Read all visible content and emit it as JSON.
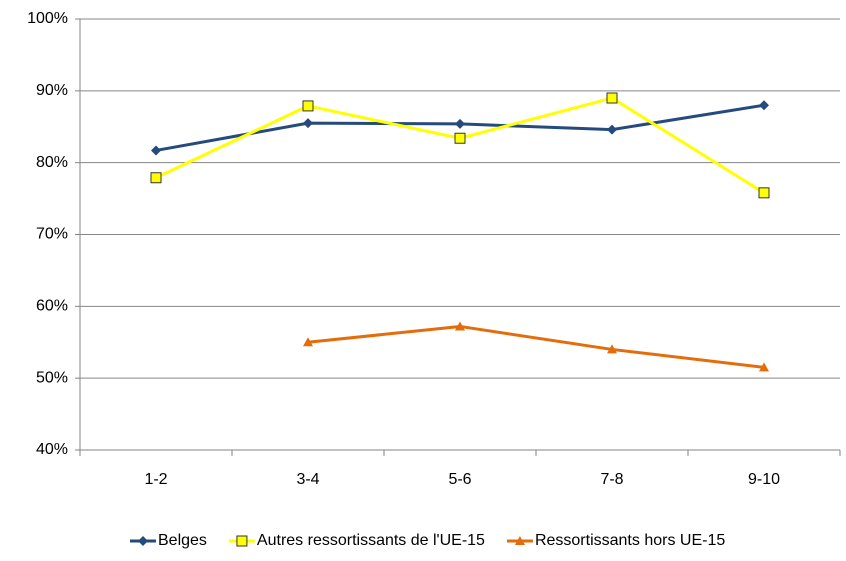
{
  "chart_data": {
    "type": "line",
    "categories": [
      "1-2",
      "3-4",
      "5-6",
      "7-8",
      "9-10"
    ],
    "series": [
      {
        "name": "Belges",
        "color": "#254a7e",
        "marker": "diamond",
        "values": [
          81.7,
          85.5,
          85.4,
          84.6,
          88.0
        ]
      },
      {
        "name": "Autres ressortissants de l'UE-15",
        "color": "#ffff00",
        "marker": "square",
        "values": [
          77.9,
          87.9,
          83.4,
          89.0,
          75.8
        ]
      },
      {
        "name": "Ressortissants hors UE-15",
        "color": "#e46c0a",
        "marker": "triangle",
        "values": [
          null,
          55.0,
          57.2,
          54.0,
          51.5
        ]
      }
    ],
    "ylim": [
      40,
      100
    ],
    "yticks": [
      {
        "value": 40,
        "label": "40%"
      },
      {
        "value": 50,
        "label": "50%"
      },
      {
        "value": 60,
        "label": "60%"
      },
      {
        "value": 70,
        "label": "70%"
      },
      {
        "value": 80,
        "label": "80%"
      },
      {
        "value": 90,
        "label": "90%"
      },
      {
        "value": 100,
        "label": "100%"
      }
    ],
    "grid": true,
    "legend": "bottom"
  }
}
